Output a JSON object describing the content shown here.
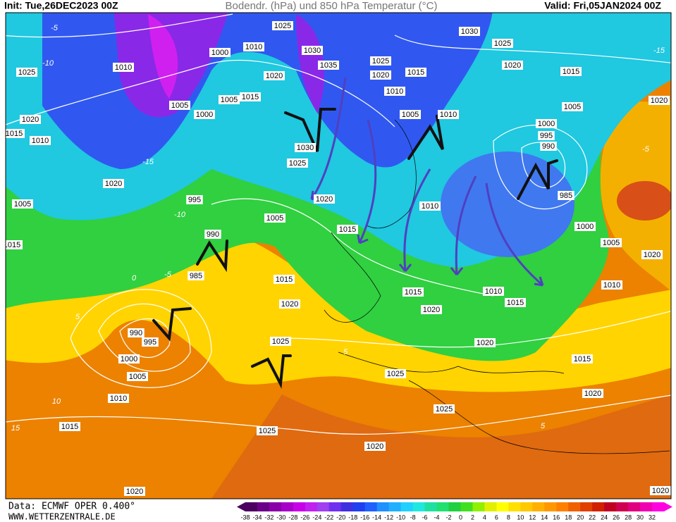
{
  "header": {
    "init": "Init: Tue,26DEC2023 00Z",
    "title": "Bodendr. (hPa) und 850 hPa Temperatur (°C)",
    "valid": "Valid: Fri,05JAN2024 00Z"
  },
  "footer": {
    "source": "Data: ECMWF OPER 0.400°",
    "website": "WWW.WETTERZENTRALE.DE"
  },
  "isobar_labels": [
    "1025",
    "1010",
    "1000",
    "1030",
    "1035",
    "1030",
    "1025",
    "1020",
    "1015",
    "1025",
    "1010",
    "1025",
    "1020",
    "1015",
    "1020",
    "1010",
    "1015",
    "1005",
    "1005",
    "1000",
    "1005",
    "1010",
    "1005",
    "1020",
    "1020",
    "1000",
    "995",
    "990",
    "1015",
    "1010",
    "1030",
    "1025",
    "1020",
    "985",
    "1020",
    "1005",
    "995",
    "1010",
    "1005",
    "1015",
    "1000",
    "990",
    "1005",
    "1015",
    "985",
    "1015",
    "1020",
    "1015",
    "1010",
    "1010",
    "1020",
    "1015",
    "1020",
    "990",
    "995",
    "1000",
    "1025",
    "1020",
    "1005",
    "1015",
    "1025",
    "1010",
    "1020",
    "1015",
    "1025",
    "1025",
    "1020",
    "1020",
    "1020"
  ],
  "temperature_labels": [
    "-5",
    "-10",
    "-15",
    "-10",
    "-5",
    "0",
    "5",
    "10",
    "15",
    "-15",
    "5",
    "-5",
    "5"
  ],
  "colorbar": {
    "labels": [
      -38,
      -34,
      -32,
      -30,
      -28,
      -26,
      -24,
      -22,
      -20,
      -18,
      -16,
      -14,
      -12,
      -10,
      -8,
      -6,
      -4,
      -2,
      0,
      2,
      4,
      6,
      8,
      10,
      12,
      14,
      16,
      18,
      20,
      22,
      24,
      26,
      28,
      30,
      32
    ],
    "colors": [
      "#4b0060",
      "#6a0088",
      "#8a00a8",
      "#a800c8",
      "#c800e8",
      "#c020f0",
      "#a040f0",
      "#7030f0",
      "#4030e0",
      "#2040f0",
      "#2060ff",
      "#2090ff",
      "#20b0ff",
      "#20d0ff",
      "#20e8e0",
      "#20e0a0",
      "#20e070",
      "#20d040",
      "#40e020",
      "#90f000",
      "#e0f000",
      "#ffff00",
      "#ffe000",
      "#ffc800",
      "#ffb000",
      "#ff9800",
      "#ff8000",
      "#f06000",
      "#e04000",
      "#d02000",
      "#c00020",
      "#d00050",
      "#e00080",
      "#f000b0",
      "#ff00e0"
    ]
  }
}
